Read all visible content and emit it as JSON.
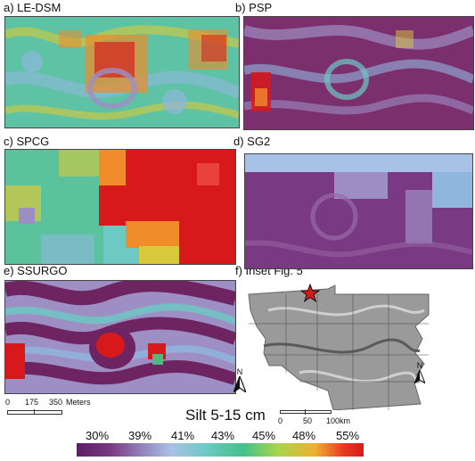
{
  "panels": [
    {
      "key": "a",
      "label": "a) LE-DSM"
    },
    {
      "key": "b",
      "label": "b) PSP"
    },
    {
      "key": "c",
      "label": "c) SPCG"
    },
    {
      "key": "d",
      "label": "d) SG2"
    },
    {
      "key": "e",
      "label": "e) SSURGO"
    },
    {
      "key": "f",
      "label": "f) Inset Fig. 5"
    }
  ],
  "scalebar_main": {
    "labels": [
      "0",
      "175",
      "350"
    ],
    "unit": "Meters"
  },
  "scalebar_inset": {
    "labels": [
      "0",
      "50",
      "100"
    ],
    "unit": "km"
  },
  "north_label": "N",
  "legend": {
    "title": "Silt 5-15 cm",
    "ticks": [
      "30%",
      "39%",
      "41%",
      "43%",
      "45%",
      "48%",
      "55%"
    ]
  },
  "colors": {
    "purple": "#6e2460",
    "lavender": "#9d8fc4",
    "blue": "#8fb7de",
    "cyan": "#6cc9c4",
    "green": "#4dbb7e",
    "yellow": "#d9c83a",
    "orange": "#f08c2a",
    "red": "#d7191c"
  }
}
